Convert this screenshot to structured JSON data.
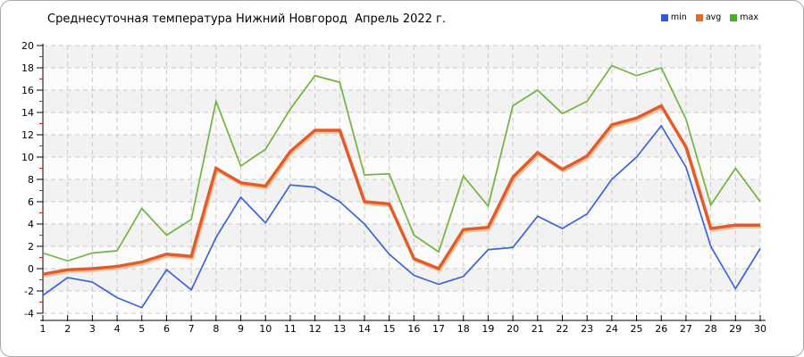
{
  "title": "Среднесуточная температура Нижний Новгород  Апрель 2022 г.",
  "legend": [
    {
      "label": "min",
      "color": "#2f5bd0"
    },
    {
      "label": "avg",
      "color": "#e8692e"
    },
    {
      "label": "max",
      "color": "#4aad27"
    }
  ],
  "colors": {
    "band_dark": "#f2f2f2",
    "band_light": "#fbfbfb",
    "gridline": "#c9c9c9",
    "axis": "#000000",
    "minor_tick": "#cc2222",
    "avg_halo": "#f5c29c"
  },
  "chart_data": {
    "type": "line",
    "title": "Среднесуточная температура Нижний Новгород  Апрель 2022 г.",
    "xlabel": "",
    "ylabel": "",
    "x": [
      1,
      2,
      3,
      4,
      5,
      6,
      7,
      8,
      9,
      10,
      11,
      12,
      13,
      14,
      15,
      16,
      17,
      18,
      19,
      20,
      21,
      22,
      23,
      24,
      25,
      26,
      27,
      28,
      29,
      30
    ],
    "ylim": [
      -4,
      20
    ],
    "y_tick_step": 2,
    "grid": true,
    "legend_position": "top-right",
    "series": [
      {
        "name": "min",
        "color": "#3e64d4",
        "values": [
          -2.4,
          -0.8,
          -1.2,
          -2.6,
          -3.5,
          -0.1,
          -1.9,
          2.8,
          6.4,
          4.1,
          7.5,
          7.3,
          6.0,
          4.0,
          1.3,
          -0.6,
          -1.4,
          -0.7,
          1.7,
          1.9,
          4.7,
          3.6,
          4.9,
          8.0,
          10.0,
          12.8,
          9.1,
          2.0,
          -1.8,
          1.8
        ]
      },
      {
        "name": "avg",
        "color": "#e25c2a",
        "values": [
          -0.5,
          -0.1,
          0.0,
          0.2,
          0.6,
          1.3,
          1.1,
          9.0,
          7.7,
          7.4,
          10.5,
          12.4,
          12.4,
          6.0,
          5.8,
          0.9,
          0.0,
          3.5,
          3.7,
          8.2,
          10.4,
          8.9,
          10.1,
          12.9,
          13.5,
          14.6,
          10.9,
          3.6,
          3.9,
          3.9
        ]
      },
      {
        "name": "max",
        "color": "#72b43e",
        "values": [
          1.4,
          0.7,
          1.4,
          1.6,
          5.4,
          3.0,
          4.4,
          15.0,
          9.2,
          10.7,
          14.3,
          17.3,
          16.7,
          8.4,
          8.5,
          3.0,
          1.5,
          8.3,
          5.6,
          14.6,
          16.0,
          13.9,
          15.0,
          18.2,
          17.3,
          18.0,
          13.4,
          5.7,
          9.0,
          6.0
        ]
      }
    ]
  }
}
